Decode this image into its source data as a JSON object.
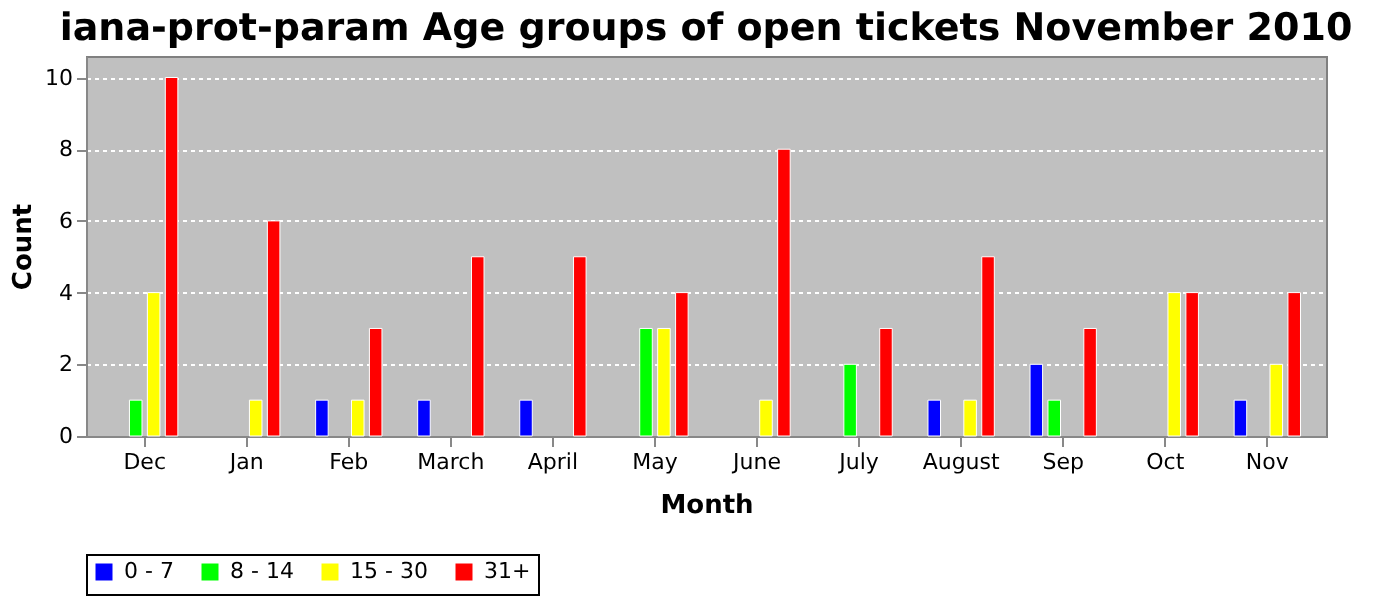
{
  "chart_data": {
    "type": "bar",
    "title": "iana-prot-param Age groups of open tickets November 2010",
    "xlabel": "Month",
    "ylabel": "Count",
    "categories": [
      "Dec",
      "Jan",
      "Feb",
      "March",
      "April",
      "May",
      "June",
      "July",
      "August",
      "Sep",
      "Oct",
      "Nov"
    ],
    "series": [
      {
        "name": "0 - 7",
        "color": "#0000ff",
        "values": [
          null,
          null,
          1,
          1,
          1,
          null,
          null,
          null,
          1,
          2,
          null,
          1
        ]
      },
      {
        "name": "8 - 14",
        "color": "#00ff00",
        "values": [
          1,
          null,
          null,
          null,
          null,
          3,
          null,
          2,
          null,
          1,
          null,
          null
        ]
      },
      {
        "name": "15 - 30",
        "color": "#ffff00",
        "values": [
          4,
          1,
          1,
          null,
          null,
          3,
          1,
          null,
          1,
          null,
          4,
          2
        ]
      },
      {
        "name": "31+",
        "color": "#ff0000",
        "values": [
          10,
          6,
          3,
          5,
          5,
          4,
          8,
          3,
          5,
          3,
          4,
          4
        ]
      }
    ],
    "ylim": [
      0,
      10.6
    ],
    "yticks": [
      0,
      2,
      4,
      6,
      8,
      10
    ],
    "grid": "y",
    "legend": "bottom"
  }
}
